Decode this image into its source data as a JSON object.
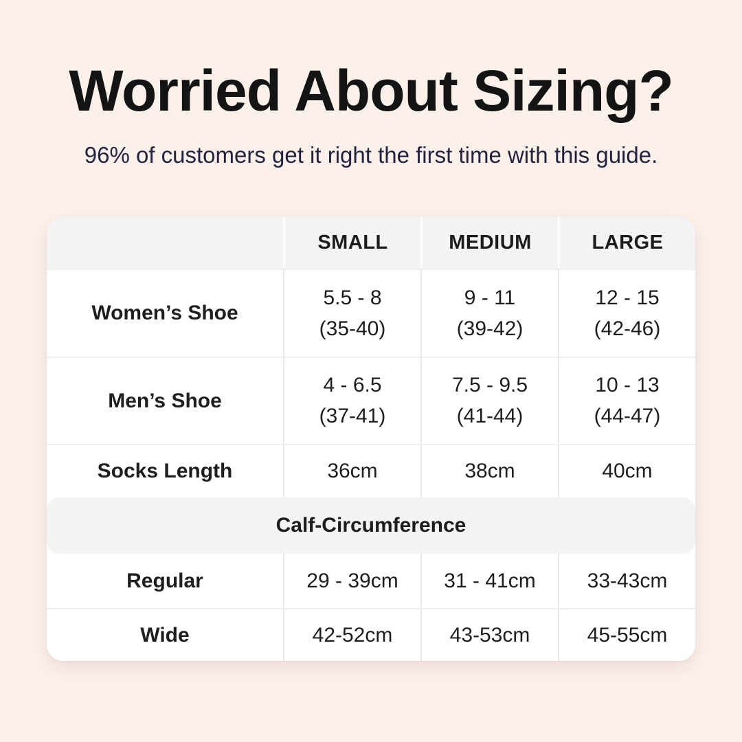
{
  "header": {
    "title": "Worried About Sizing?",
    "subtitle": "96% of customers get it right the first time with this guide."
  },
  "colors": {
    "page_background": "#fcf0ea",
    "card_background": "#ffffff",
    "band_background": "#f3f3f4",
    "divider": "#e9e9ea",
    "title_text": "#141414",
    "subtitle_text": "#232340",
    "table_text": "#1e1e1e"
  },
  "table": {
    "headers": [
      "SMALL",
      "MEDIUM",
      "LARGE"
    ],
    "shoe_rows": [
      {
        "label": "Women’s Shoe",
        "cells": [
          {
            "us": "5.5 - 8",
            "eu": "(35-40)"
          },
          {
            "us": "9 - 11",
            "eu": "(39-42)"
          },
          {
            "us": "12 - 15",
            "eu": "(42-46)"
          }
        ]
      },
      {
        "label": "Men’s Shoe",
        "cells": [
          {
            "us": "4 - 6.5",
            "eu": "(37-41)"
          },
          {
            "us": "7.5 - 9.5",
            "eu": "(41-44)"
          },
          {
            "us": "10 - 13",
            "eu": "(44-47)"
          }
        ]
      }
    ],
    "socks_row": {
      "label": "Socks Length",
      "cells": [
        "36cm",
        "38cm",
        "40cm"
      ]
    },
    "section_header": "Calf-Circumference",
    "calf_rows": [
      {
        "label": "Regular",
        "cells": [
          "29 - 39cm",
          "31 - 41cm",
          "33-43cm"
        ]
      },
      {
        "label": "Wide",
        "cells": [
          "42-52cm",
          "43-53cm",
          "45-55cm"
        ]
      }
    ]
  },
  "chart_data": {
    "type": "table",
    "title": "Worried About Sizing?",
    "subtitle": "96% of customers get it right the first time with this guide.",
    "columns": [
      "",
      "SMALL",
      "MEDIUM",
      "LARGE"
    ],
    "rows": [
      [
        "Women’s Shoe",
        "5.5 - 8 (35-40)",
        "9 - 11 (39-42)",
        "12 - 15 (42-46)"
      ],
      [
        "Men’s Shoe",
        "4 - 6.5 (37-41)",
        "7.5 - 9.5 (41-44)",
        "10 - 13 (44-47)"
      ],
      [
        "Socks Length",
        "36cm",
        "38cm",
        "40cm"
      ],
      [
        "Calf-Circumference — Regular",
        "29 - 39cm",
        "31 - 41cm",
        "33-43cm"
      ],
      [
        "Calf-Circumference — Wide",
        "42-52cm",
        "43-53cm",
        "45-55cm"
      ]
    ]
  }
}
